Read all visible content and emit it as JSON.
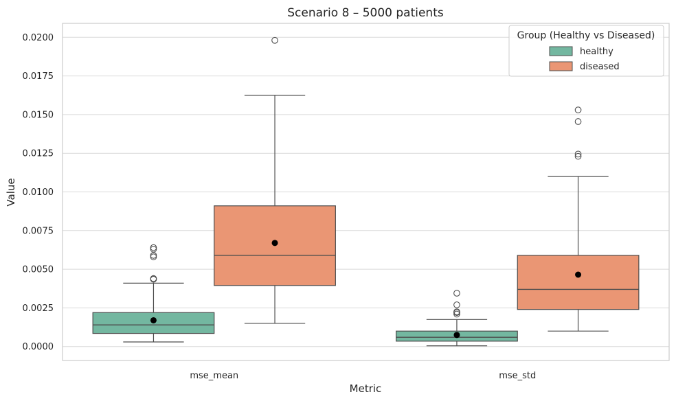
{
  "chart_data": {
    "type": "box",
    "title": "Scenario 8 – 5000 patients",
    "xlabel": "Metric",
    "ylabel": "Value",
    "ylim": [
      -0.0009,
      0.0209
    ],
    "yticks": [
      0.0,
      0.0025,
      0.005,
      0.0075,
      0.01,
      0.0125,
      0.015,
      0.0175,
      0.02
    ],
    "ytick_labels": [
      "0.0000",
      "0.0025",
      "0.0050",
      "0.0075",
      "0.0100",
      "0.0125",
      "0.0150",
      "0.0175",
      "0.0200"
    ],
    "grid": true,
    "categories": [
      "mse_mean",
      "mse_std"
    ],
    "legend": {
      "title": "Group (Healthy vs Diseased)",
      "position": "top-right"
    },
    "series": [
      {
        "name": "healthy",
        "color": "#73b7a0",
        "boxes": [
          {
            "whisker_low": 0.0003,
            "q1": 0.00085,
            "median": 0.0014,
            "q3": 0.0022,
            "whisker_high": 0.0041,
            "mean": 0.0017,
            "outliers": [
              0.00435,
              0.0044,
              0.0058,
              0.0059,
              0.0063,
              0.0064
            ]
          },
          {
            "whisker_low": 5e-05,
            "q1": 0.00035,
            "median": 0.0006,
            "q3": 0.001,
            "whisker_high": 0.00175,
            "mean": 0.00075,
            "outliers": [
              0.0021,
              0.0022,
              0.00225,
              0.0027,
              0.00345
            ]
          }
        ]
      },
      {
        "name": "diseased",
        "color": "#ea9674",
        "boxes": [
          {
            "whisker_low": 0.0015,
            "q1": 0.00395,
            "median": 0.0059,
            "q3": 0.0091,
            "whisker_high": 0.01625,
            "mean": 0.0067,
            "outliers": [
              0.0198
            ]
          },
          {
            "whisker_low": 0.001,
            "q1": 0.0024,
            "median": 0.0037,
            "q3": 0.0059,
            "whisker_high": 0.011,
            "mean": 0.00465,
            "outliers": [
              0.0123,
              0.01245,
              0.01455,
              0.0153
            ]
          }
        ]
      }
    ]
  }
}
